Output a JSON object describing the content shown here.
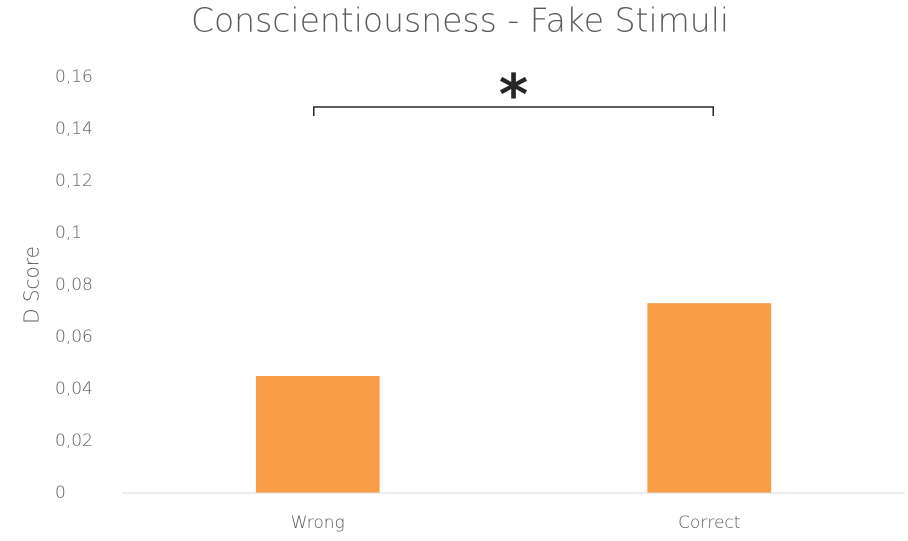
{
  "chart_data": {
    "type": "bar",
    "title": "Conscientiousness - Fake Stimuli",
    "y_label": "D Score",
    "categories": [
      "Wrong",
      "Correct"
    ],
    "values": [
      0.045,
      0.073
    ],
    "color": "#f79e46",
    "ylim": [
      0,
      0.16
    ],
    "yticks": [
      0,
      {
        "value": 0.02,
        "label": "0,02"
      },
      {
        "value": 0.04,
        "label": "0,04"
      },
      {
        "value": 0.06,
        "label": "0,06"
      },
      {
        "value": 0.08,
        "label": "0,08"
      },
      {
        "value": 0.1,
        "label": "0,1"
      },
      {
        "value": 0.12,
        "label": "0,12"
      },
      {
        "value": 0.14,
        "label": "0,14"
      },
      {
        "value": 0.16,
        "label": "0,16"
      }
    ],
    "grid": false,
    "annotation": "*"
  }
}
